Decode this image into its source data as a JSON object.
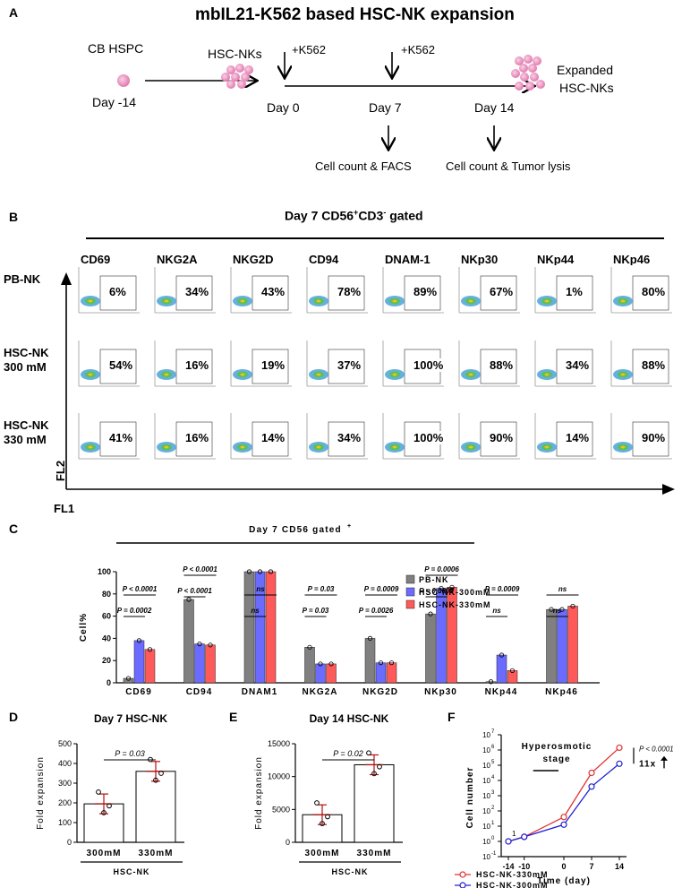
{
  "panelA": {
    "label": "A",
    "title": "mbIL21-K562 based HSC-NK expansion",
    "cb": "CB HSPC",
    "day_m14": "Day -14",
    "hscnks": "HSC-NKs",
    "k562_1": "+K562",
    "k562_2": "+K562",
    "day0": "Day 0",
    "day7": "Day 7",
    "day14": "Day 14",
    "expanded1": "Expanded",
    "expanded2": "HSC-NKs",
    "out7": "Cell count & FACS",
    "out14": "Cell count & Tumor lysis"
  },
  "panelB": {
    "label": "B",
    "title_main": "Day 7 CD56",
    "title_sup1": "+",
    "title_mid": "CD3",
    "title_sup2": "-",
    "title_end": " gated",
    "markers": [
      "CD69",
      "NKG2A",
      "NKG2D",
      "CD94",
      "DNAM-1",
      "NKp30",
      "NKp44",
      "NKp46"
    ],
    "rows": [
      {
        "label1": "PB-NK",
        "label2": "",
        "values": [
          "6%",
          "34%",
          "43%",
          "78%",
          "89%",
          "67%",
          "1%",
          "80%"
        ]
      },
      {
        "label1": "HSC-NK",
        "label2": "300 mM",
        "values": [
          "54%",
          "16%",
          "19%",
          "37%",
          "100%",
          "88%",
          "34%",
          "88%"
        ]
      },
      {
        "label1": "HSC-NK",
        "label2": "330 mM",
        "values": [
          "41%",
          "16%",
          "14%",
          "34%",
          "100%",
          "90%",
          "14%",
          "90%"
        ]
      }
    ],
    "yaxis": "FL2",
    "xaxis": "FL1"
  },
  "panelC": {
    "label": "C",
    "chart_data": {
      "type": "bar",
      "title": "Day 7 CD56+ gated",
      "ylabel": "Cell%",
      "ylim": [
        0,
        100
      ],
      "yticks": [
        "0",
        "20",
        "40",
        "60",
        "80",
        "100"
      ],
      "categories": [
        "CD69",
        "CD94",
        "DNAM1",
        "NKG2A",
        "NKG2D",
        "NKp30",
        "NKp44",
        "NKp46"
      ],
      "series": [
        {
          "name": "PB-NK",
          "color": "#808080",
          "values": [
            4,
            75,
            100,
            32,
            40,
            62,
            1,
            66
          ]
        },
        {
          "name": "HSC-NK-300mM",
          "color": "#6b6bff",
          "values": [
            38,
            35,
            100,
            17,
            18,
            85,
            25,
            66
          ]
        },
        {
          "name": "HSC-NK-330mM",
          "color": "#ff5a5a",
          "values": [
            30,
            34,
            100,
            17,
            18,
            86,
            11,
            69
          ]
        }
      ],
      "annotations": [
        {
          "cat": 0,
          "pair": "a",
          "text": "P = 0.0002"
        },
        {
          "cat": 0,
          "pair": "b",
          "text": "P < 0.0001"
        },
        {
          "cat": 1,
          "pair": "a",
          "text": "P < 0.0001"
        },
        {
          "cat": 1,
          "pair": "b",
          "text": "P < 0.0001"
        },
        {
          "cat": 2,
          "pair": "a",
          "text": "ns"
        },
        {
          "cat": 2,
          "pair": "b",
          "text": "ns"
        },
        {
          "cat": 3,
          "pair": "a",
          "text": "P = 0.03"
        },
        {
          "cat": 3,
          "pair": "b",
          "text": "P = 0.03"
        },
        {
          "cat": 4,
          "pair": "a",
          "text": "P = 0.0026"
        },
        {
          "cat": 4,
          "pair": "b",
          "text": "P = 0.0009"
        },
        {
          "cat": 5,
          "pair": "a",
          "text": "P = 0.0005"
        },
        {
          "cat": 5,
          "pair": "b",
          "text": "P = 0.0006"
        },
        {
          "cat": 6,
          "pair": "a",
          "text": "ns"
        },
        {
          "cat": 6,
          "pair": "b",
          "text": "P = 0.0009"
        },
        {
          "cat": 7,
          "pair": "a",
          "text": "ns"
        },
        {
          "cat": 7,
          "pair": "b",
          "text": "ns"
        }
      ]
    }
  },
  "panelD": {
    "label": "D",
    "chart_data": {
      "type": "bar",
      "title": "Day 7 HSC-NK",
      "ylabel": "Fold expansion",
      "ylim": [
        0,
        500
      ],
      "yticks": [
        "0",
        "100",
        "200",
        "300",
        "400",
        "500"
      ],
      "categories": [
        "300mM",
        "330mM"
      ],
      "values": [
        195,
        360
      ],
      "group": "HSC-NK",
      "pvalue": "P = 0.03"
    }
  },
  "panelE": {
    "label": "E",
    "chart_data": {
      "type": "bar",
      "title": "Day 14 HSC-NK",
      "ylabel": "Fold expansion",
      "ylim": [
        0,
        15000
      ],
      "yticks": [
        "0",
        "5000",
        "10000",
        "15000"
      ],
      "categories": [
        "300mM",
        "330mM"
      ],
      "values": [
        4200,
        11800
      ],
      "group": "HSC-NK",
      "pvalue": "P = 0.02"
    }
  },
  "panelF": {
    "label": "F",
    "chart_data": {
      "type": "line",
      "xlabel": "Time (day)",
      "ylabel": "Cell number",
      "x": [
        -14,
        -10,
        0,
        7,
        14
      ],
      "xticks": [
        "-14",
        "-10",
        "0",
        "7",
        "14"
      ],
      "yticks": [
        "10",
        "10",
        "10",
        "10",
        "10",
        "10",
        "10",
        "10",
        "10"
      ],
      "yexp": [
        "-1",
        "0",
        "1",
        "2",
        "3",
        "4",
        "5",
        "6",
        "7"
      ],
      "series": [
        {
          "name": "HSC-NK-330mM",
          "color": "#e03030",
          "log10_values": [
            0,
            0.3,
            1.6,
            4.5,
            6.15
          ]
        },
        {
          "name": "HSC-NK-300mM",
          "color": "#2020d0",
          "log10_values": [
            0,
            0.3,
            1.1,
            3.6,
            5.1
          ]
        }
      ],
      "start_label": "1",
      "stage1": "Hyperosmotic",
      "stage2": "stage",
      "pvalue": "P < 0.0001",
      "fold": "11x"
    }
  }
}
